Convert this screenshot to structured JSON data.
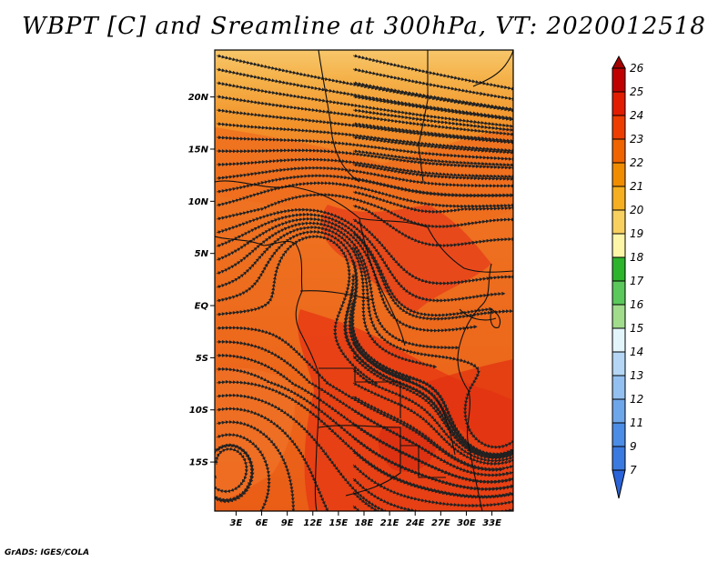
{
  "title": "WBPT [C] and Sreamline at 300hPa, VT: 2020012518",
  "credit": "GrADS: IGES/COLA",
  "map": {
    "variable": "Wet-bulb potential temperature (C) with streamlines",
    "level": "300hPa",
    "valid_time": "2020012518",
    "lat_labels": [
      "20N",
      "15N",
      "10N",
      "5N",
      "EQ",
      "5S",
      "10S",
      "15S"
    ],
    "lat_values": [
      20,
      15,
      10,
      5,
      0,
      -5,
      -10,
      -15
    ],
    "lon_labels": [
      "3E",
      "6E",
      "9E",
      "12E",
      "15E",
      "18E",
      "21E",
      "24E",
      "27E",
      "30E",
      "33E"
    ],
    "lon_values": [
      3,
      6,
      9,
      12,
      15,
      18,
      21,
      24,
      27,
      30,
      33
    ],
    "lon_range": [
      0.5,
      35.5
    ],
    "lat_range": [
      -19.7,
      24.5
    ]
  },
  "colorbar": {
    "labels": [
      "26",
      "25",
      "24",
      "23",
      "22",
      "21",
      "20",
      "19",
      "18",
      "17",
      "16",
      "15",
      "14",
      "13",
      "12",
      "11",
      "9",
      "7"
    ],
    "colors": [
      "#a50000",
      "#c00000",
      "#e11c00",
      "#ee3d00",
      "#f06400",
      "#f08c00",
      "#f5af20",
      "#f8d060",
      "#fdf6a8",
      "#2db42d",
      "#5ac85a",
      "#a0dc8c",
      "#e2f5fa",
      "#b5d7f5",
      "#93c0f0",
      "#6ea6ea",
      "#4b8ce6",
      "#3a7ae0",
      "#2a64d8"
    ]
  }
}
